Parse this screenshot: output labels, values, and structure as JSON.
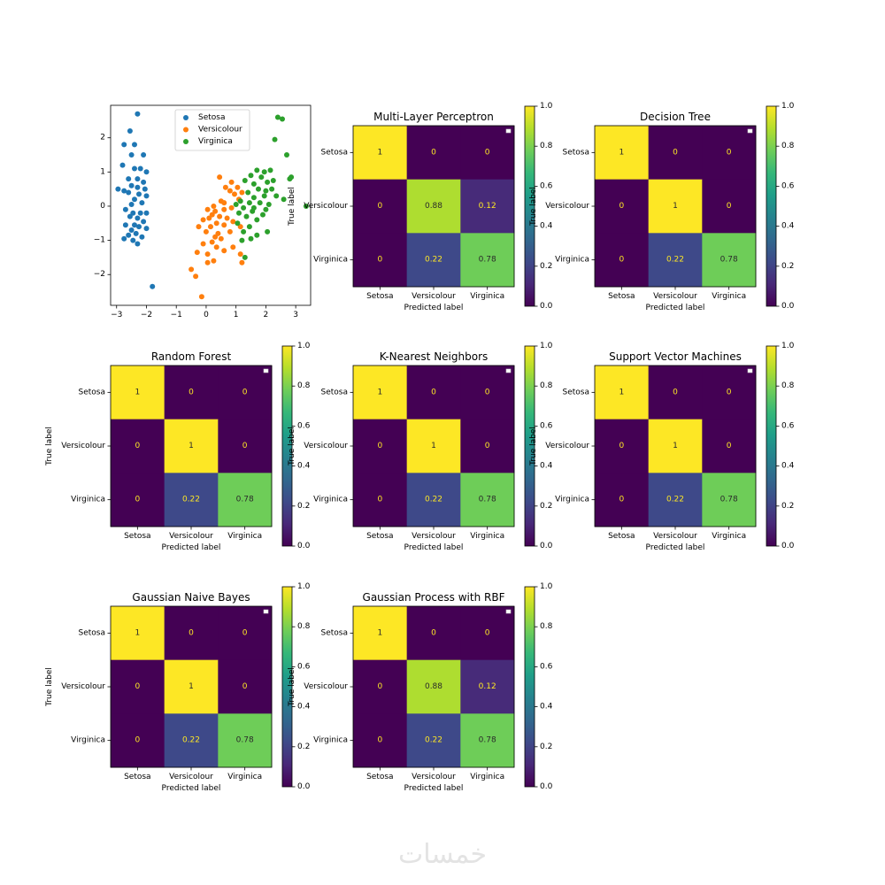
{
  "watermark": "خمسات",
  "chart_data": [
    {
      "type": "scatter",
      "title": "",
      "xlabel": "",
      "ylabel": "",
      "xlim": [
        -3.2,
        3.5
      ],
      "ylim": [
        -2.9,
        2.95
      ],
      "xticks": [
        -3,
        -2,
        -1,
        0,
        1,
        2,
        3
      ],
      "yticks": [
        -2,
        -1,
        0,
        1,
        2
      ],
      "legend": {
        "placement": "upper-center",
        "entries": [
          "Setosa",
          "Versicolour",
          "Virginica"
        ]
      },
      "series": [
        {
          "name": "Setosa",
          "color": "#1f77b4",
          "points": [
            [
              -2.3,
              2.7
            ],
            [
              -2.55,
              2.2
            ],
            [
              -2.75,
              1.8
            ],
            [
              -2.4,
              1.8
            ],
            [
              -2.1,
              1.5
            ],
            [
              -2.5,
              1.5
            ],
            [
              -2.8,
              1.2
            ],
            [
              -2.4,
              1.1
            ],
            [
              -2.2,
              1.1
            ],
            [
              -2.0,
              1.0
            ],
            [
              -2.6,
              0.8
            ],
            [
              -2.3,
              0.8
            ],
            [
              -2.1,
              0.7
            ],
            [
              -2.5,
              0.6
            ],
            [
              -2.3,
              0.55
            ],
            [
              -2.05,
              0.5
            ],
            [
              -2.6,
              0.4
            ],
            [
              -2.25,
              0.35
            ],
            [
              -2.0,
              0.3
            ],
            [
              -2.95,
              0.5
            ],
            [
              -2.75,
              0.45
            ],
            [
              -2.4,
              0.2
            ],
            [
              -2.15,
              0.1
            ],
            [
              -2.5,
              0.05
            ],
            [
              -2.7,
              -0.1
            ],
            [
              -2.45,
              -0.2
            ],
            [
              -2.2,
              -0.2
            ],
            [
              -2.0,
              -0.2
            ],
            [
              -2.55,
              -0.3
            ],
            [
              -2.3,
              -0.35
            ],
            [
              -2.1,
              -0.45
            ],
            [
              -2.4,
              -0.55
            ],
            [
              -2.7,
              -0.55
            ],
            [
              -2.25,
              -0.6
            ],
            [
              -2.5,
              -0.7
            ],
            [
              -2.0,
              -0.65
            ],
            [
              -2.35,
              -0.8
            ],
            [
              -2.6,
              -0.85
            ],
            [
              -2.15,
              -0.9
            ],
            [
              -2.75,
              -0.95
            ],
            [
              -2.45,
              -1.0
            ],
            [
              -2.3,
              -1.1
            ],
            [
              -1.8,
              -2.35
            ]
          ]
        },
        {
          "name": "Versicolour",
          "color": "#ff7f0e",
          "points": [
            [
              0.45,
              0.85
            ],
            [
              0.85,
              0.7
            ],
            [
              0.65,
              0.55
            ],
            [
              1.05,
              0.55
            ],
            [
              0.8,
              0.45
            ],
            [
              1.2,
              0.4
            ],
            [
              0.95,
              0.35
            ],
            [
              1.1,
              0.2
            ],
            [
              0.5,
              0.15
            ],
            [
              0.25,
              0.0
            ],
            [
              0.05,
              -0.1
            ],
            [
              0.3,
              -0.15
            ],
            [
              0.6,
              -0.1
            ],
            [
              0.85,
              -0.05
            ],
            [
              0.2,
              -0.25
            ],
            [
              0.45,
              -0.3
            ],
            [
              0.1,
              -0.35
            ],
            [
              0.7,
              -0.35
            ],
            [
              -0.1,
              -0.4
            ],
            [
              0.35,
              -0.5
            ],
            [
              0.6,
              -0.55
            ],
            [
              -0.25,
              -0.6
            ],
            [
              0.15,
              -0.6
            ],
            [
              0.0,
              -0.75
            ],
            [
              0.4,
              -0.8
            ],
            [
              0.8,
              -0.75
            ],
            [
              0.9,
              -0.45
            ],
            [
              1.15,
              -0.6
            ],
            [
              0.5,
              -0.95
            ],
            [
              0.2,
              -1.05
            ],
            [
              -0.1,
              -1.1
            ],
            [
              0.35,
              -1.2
            ],
            [
              0.6,
              -1.3
            ],
            [
              -0.3,
              -1.35
            ],
            [
              0.05,
              -1.4
            ],
            [
              0.25,
              -1.6
            ],
            [
              0.9,
              -1.2
            ],
            [
              1.15,
              -1.4
            ],
            [
              1.2,
              -1.65
            ],
            [
              -0.5,
              -1.85
            ],
            [
              -0.35,
              -2.05
            ],
            [
              0.05,
              -1.65
            ],
            [
              -0.15,
              -2.65
            ],
            [
              0.6,
              0.1
            ],
            [
              0.3,
              -0.9
            ]
          ]
        },
        {
          "name": "Virginica",
          "color": "#2ca02c",
          "points": [
            [
              2.4,
              2.6
            ],
            [
              2.55,
              2.55
            ],
            [
              2.3,
              1.95
            ],
            [
              1.7,
              1.05
            ],
            [
              1.95,
              1.0
            ],
            [
              2.15,
              1.05
            ],
            [
              1.5,
              0.9
            ],
            [
              1.85,
              0.85
            ],
            [
              2.05,
              0.7
            ],
            [
              2.25,
              0.75
            ],
            [
              1.3,
              0.75
            ],
            [
              1.6,
              0.65
            ],
            [
              2.8,
              0.8
            ],
            [
              2.85,
              0.85
            ],
            [
              1.75,
              0.5
            ],
            [
              2.0,
              0.45
            ],
            [
              2.2,
              0.5
            ],
            [
              1.4,
              0.4
            ],
            [
              1.95,
              0.3
            ],
            [
              1.6,
              0.25
            ],
            [
              2.35,
              0.3
            ],
            [
              1.15,
              0.15
            ],
            [
              1.45,
              0.1
            ],
            [
              1.0,
              0.05
            ],
            [
              1.8,
              0.1
            ],
            [
              2.1,
              0.05
            ],
            [
              3.35,
              0.0
            ],
            [
              1.25,
              -0.05
            ],
            [
              1.55,
              -0.15
            ],
            [
              1.9,
              -0.25
            ],
            [
              1.1,
              -0.2
            ],
            [
              1.35,
              -0.3
            ],
            [
              1.7,
              -0.4
            ],
            [
              1.05,
              -0.5
            ],
            [
              1.45,
              -0.6
            ],
            [
              1.25,
              -0.75
            ],
            [
              2.05,
              -0.75
            ],
            [
              1.7,
              -0.85
            ],
            [
              1.5,
              -0.95
            ],
            [
              1.2,
              -1.0
            ],
            [
              2.0,
              -0.1
            ],
            [
              2.6,
              0.2
            ],
            [
              1.3,
              -1.5
            ],
            [
              2.7,
              1.5
            ],
            [
              1.6,
              -0.05
            ]
          ]
        }
      ]
    },
    {
      "type": "heatmap",
      "title": "Multi-Layer Perceptron",
      "xlabel": "Predicted label",
      "ylabel": "True label",
      "categories": [
        "Setosa",
        "Versicolour",
        "Virginica"
      ],
      "values": [
        [
          1,
          0,
          0
        ],
        [
          0,
          0.88,
          0.12
        ],
        [
          0,
          0.22,
          0.78
        ]
      ],
      "labels": [
        [
          "1",
          "0",
          "0"
        ],
        [
          "0",
          "0.88",
          "0.12"
        ],
        [
          "0",
          "0.22",
          "0.78"
        ]
      ],
      "colorbar": {
        "range": [
          0,
          1.0
        ],
        "ticks": [
          "0.0",
          "0.2",
          "0.4",
          "0.6",
          "0.8",
          "1.0"
        ]
      }
    },
    {
      "type": "heatmap",
      "title": "Decision Tree",
      "xlabel": "Predicted label",
      "ylabel": "True label",
      "categories": [
        "Setosa",
        "Versicolour",
        "Virginica"
      ],
      "values": [
        [
          1,
          0,
          0
        ],
        [
          0,
          1,
          0
        ],
        [
          0,
          0.22,
          0.78
        ]
      ],
      "labels": [
        [
          "1",
          "0",
          "0"
        ],
        [
          "0",
          "1",
          "0"
        ],
        [
          "0",
          "0.22",
          "0.78"
        ]
      ],
      "colorbar": {
        "range": [
          0,
          1.0
        ],
        "ticks": [
          "0.0",
          "0.2",
          "0.4",
          "0.6",
          "0.8",
          "1.0"
        ]
      }
    },
    {
      "type": "heatmap",
      "title": "Random Forest",
      "xlabel": "Predicted label",
      "ylabel": "True label",
      "categories": [
        "Setosa",
        "Versicolour",
        "Virginica"
      ],
      "values": [
        [
          1,
          0,
          0
        ],
        [
          0,
          1,
          0
        ],
        [
          0,
          0.22,
          0.78
        ]
      ],
      "labels": [
        [
          "1",
          "0",
          "0"
        ],
        [
          "0",
          "1",
          "0"
        ],
        [
          "0",
          "0.22",
          "0.78"
        ]
      ],
      "colorbar": {
        "range": [
          0,
          1.0
        ],
        "ticks": [
          "0.0",
          "0.2",
          "0.4",
          "0.6",
          "0.8",
          "1.0"
        ]
      }
    },
    {
      "type": "heatmap",
      "title": "K-Nearest Neighbors",
      "xlabel": "Predicted label",
      "ylabel": "True label",
      "categories": [
        "Setosa",
        "Versicolour",
        "Virginica"
      ],
      "values": [
        [
          1,
          0,
          0
        ],
        [
          0,
          1,
          0
        ],
        [
          0,
          0.22,
          0.78
        ]
      ],
      "labels": [
        [
          "1",
          "0",
          "0"
        ],
        [
          "0",
          "1",
          "0"
        ],
        [
          "0",
          "0.22",
          "0.78"
        ]
      ],
      "colorbar": {
        "range": [
          0,
          1.0
        ],
        "ticks": [
          "0.0",
          "0.2",
          "0.4",
          "0.6",
          "0.8",
          "1.0"
        ]
      }
    },
    {
      "type": "heatmap",
      "title": "Support Vector Machines",
      "xlabel": "Predicted label",
      "ylabel": "True label",
      "categories": [
        "Setosa",
        "Versicolour",
        "Virginica"
      ],
      "values": [
        [
          1,
          0,
          0
        ],
        [
          0,
          1,
          0
        ],
        [
          0,
          0.22,
          0.78
        ]
      ],
      "labels": [
        [
          "1",
          "0",
          "0"
        ],
        [
          "0",
          "1",
          "0"
        ],
        [
          "0",
          "0.22",
          "0.78"
        ]
      ],
      "colorbar": {
        "range": [
          0,
          1.0
        ],
        "ticks": [
          "0.0",
          "0.2",
          "0.4",
          "0.6",
          "0.8",
          "1.0"
        ]
      }
    },
    {
      "type": "heatmap",
      "title": "Gaussian Naive Bayes",
      "xlabel": "Predicted label",
      "ylabel": "True label",
      "categories": [
        "Setosa",
        "Versicolour",
        "Virginica"
      ],
      "values": [
        [
          1,
          0,
          0
        ],
        [
          0,
          1,
          0
        ],
        [
          0,
          0.22,
          0.78
        ]
      ],
      "labels": [
        [
          "1",
          "0",
          "0"
        ],
        [
          "0",
          "1",
          "0"
        ],
        [
          "0",
          "0.22",
          "0.78"
        ]
      ],
      "colorbar": {
        "range": [
          0,
          1.0
        ],
        "ticks": [
          "0.0",
          "0.2",
          "0.4",
          "0.6",
          "0.8",
          "1.0"
        ]
      }
    },
    {
      "type": "heatmap",
      "title": "Gaussian Process with RBF",
      "xlabel": "Predicted label",
      "ylabel": "True label",
      "categories": [
        "Setosa",
        "Versicolour",
        "Virginica"
      ],
      "values": [
        [
          1,
          0,
          0
        ],
        [
          0,
          0.88,
          0.12
        ],
        [
          0,
          0.22,
          0.78
        ]
      ],
      "labels": [
        [
          "1",
          "0",
          "0"
        ],
        [
          "0",
          "0.88",
          "0.12"
        ],
        [
          "0",
          "0.22",
          "0.78"
        ]
      ],
      "colorbar": {
        "range": [
          0,
          1.0
        ],
        "ticks": [
          "0.0",
          "0.2",
          "0.4",
          "0.6",
          "0.8",
          "1.0"
        ]
      }
    }
  ]
}
